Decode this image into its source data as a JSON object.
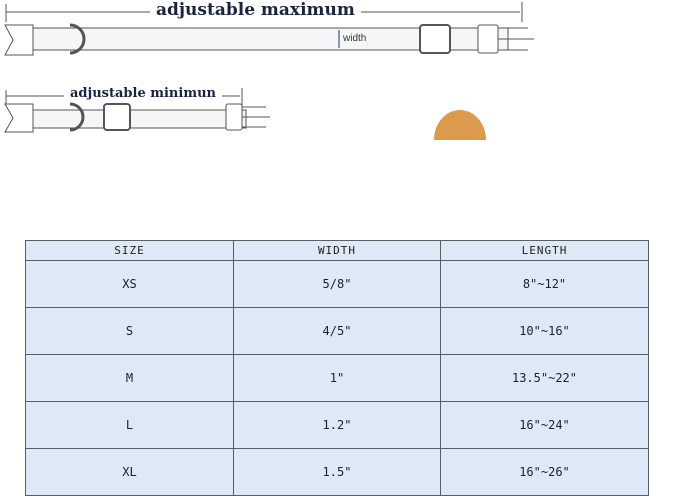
{
  "diagram": {
    "max_label": "adjustable maximum",
    "min_label": "adjustable minimun",
    "width_label": "width"
  },
  "colors": {
    "cell_bg": "#dde9f6",
    "border": "#5a5f66",
    "title": "#1c2340"
  },
  "table": {
    "headers": [
      "SIZE",
      "WIDTH",
      "LENGTH"
    ],
    "rows": [
      [
        "XS",
        "5/8\"",
        "8\"~12\""
      ],
      [
        "S",
        "4/5\"",
        "10\"~16\""
      ],
      [
        "M",
        "1\"",
        "13.5\"~22\""
      ],
      [
        "L",
        "1.2\"",
        "16\"~24\""
      ],
      [
        "XL",
        "1.5\"",
        "16\"~26\""
      ]
    ]
  }
}
